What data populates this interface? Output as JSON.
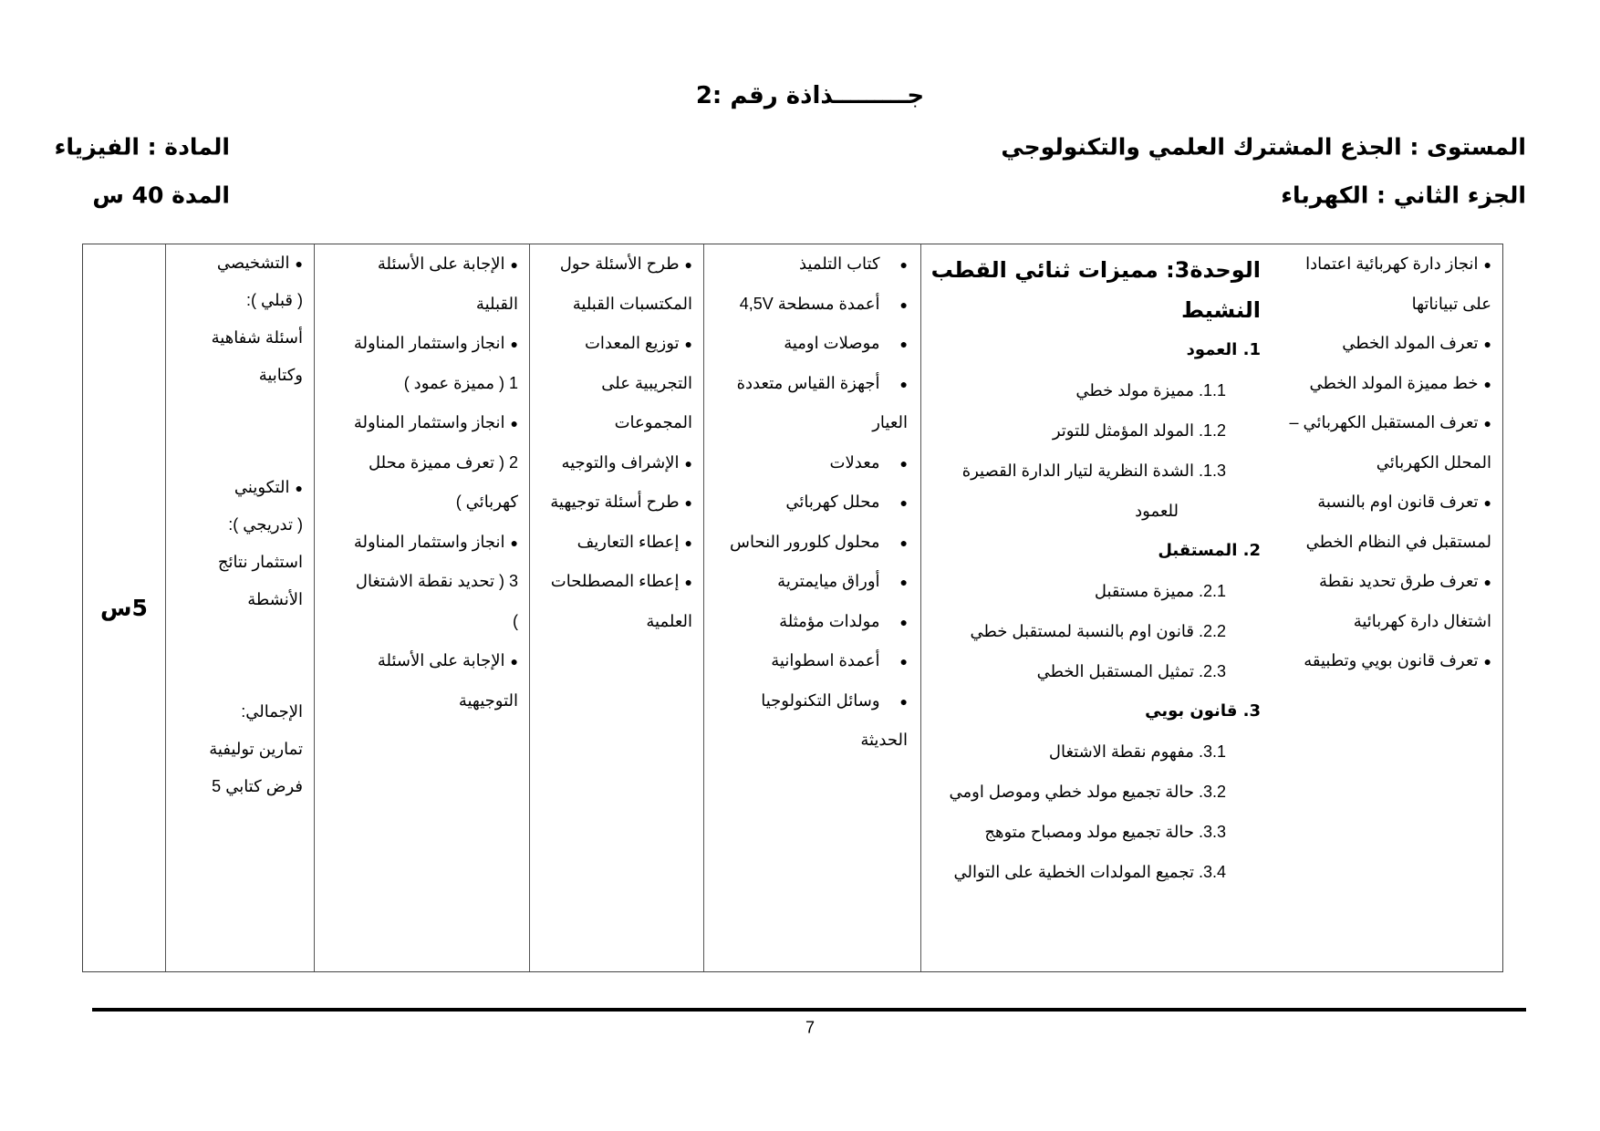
{
  "header": {
    "title": "جـــــــــذاذة رقم :2",
    "level": "المستوى : الجذع المشترك العلمي والتكنولوجي",
    "part": "الجزء الثاني : الكهرباء",
    "subject": "المادة : الفيزياء",
    "duration": "المدة 40 س"
  },
  "table": {
    "objectives": [
      {
        "text": "انجاز دارة كهربائية اعتمادا",
        "bullet": true
      },
      {
        "text": "على تبياناتها",
        "bullet": false
      },
      {
        "text": "تعرف المولد الخطي",
        "bullet": true
      },
      {
        "text": "خط مميزة المولد الخطي",
        "bullet": true
      },
      {
        "text": "تعرف المستقبل الكهربائي –",
        "bullet": true
      },
      {
        "text": "المحلل الكهربائي",
        "bullet": false
      },
      {
        "text": "تعرف قانون اوم بالنسبة",
        "bullet": true
      },
      {
        "text": "لمستقبل في النظام الخطي",
        "bullet": false
      },
      {
        "text": "تعرف طرق تحديد نقطة",
        "bullet": true
      },
      {
        "text": "اشتغال دارة كهربائية",
        "bullet": false
      },
      {
        "text": "تعرف قانون بويي وتطبيقه",
        "bullet": true
      }
    ],
    "unit": {
      "title_line1": "الوحدة3: مميزات ثنائي القطب",
      "title_line2": "النشيط",
      "items": [
        {
          "type": "main",
          "text": "1.  العمود"
        },
        {
          "type": "sub",
          "text": "1.1. مميزة مولد خطي"
        },
        {
          "type": "sub",
          "text": "1.2. المولد المؤمثل للتوتر"
        },
        {
          "type": "sub",
          "text": "1.3. الشدة النظرية لتيار الدارة القصيرة"
        },
        {
          "type": "cont",
          "text": "للعمود"
        },
        {
          "type": "main",
          "text": "2.  المستقبل"
        },
        {
          "type": "sub",
          "text": "2.1. مميزة مستقبل"
        },
        {
          "type": "sub",
          "text": "2.2. قانون اوم بالنسبة لمستقبل خطي"
        },
        {
          "type": "sub",
          "text": "2.3. تمثيل المستقبل الخطي"
        },
        {
          "type": "main",
          "text": "3.  قانون بويي"
        },
        {
          "type": "sub",
          "text": "3.1. مفهوم نقطة الاشتغال"
        },
        {
          "type": "sub",
          "text": "3.2. حالة تجميع مولد خطي وموصل اومي"
        },
        {
          "type": "sub",
          "text": "3.3. حالة تجميع مولد ومصباح متوهج"
        },
        {
          "type": "sub",
          "text": "3.4. تجميع المولدات الخطية على التوالي"
        }
      ]
    },
    "materials": [
      {
        "text": "كتاب التلميذ",
        "bullet": true
      },
      {
        "text": "أعمدة مسطحة 4,5V",
        "bullet": true
      },
      {
        "text": "موصلات اومية",
        "bullet": true
      },
      {
        "text": "أجهزة القياس متعددة",
        "bullet": true
      },
      {
        "text": "العيار",
        "bullet": false
      },
      {
        "text": "معدلات",
        "bullet": true
      },
      {
        "text": "محلل كهربائي",
        "bullet": true
      },
      {
        "text": "محلول كلورور النحاس",
        "bullet": true
      },
      {
        "text": "أوراق ميايمترية",
        "bullet": true
      },
      {
        "text": "مولدات مؤمثلة",
        "bullet": true
      },
      {
        "text": "أعمدة اسطوانية",
        "bullet": true
      },
      {
        "text": "وسائل التكنولوجيا",
        "bullet": true
      },
      {
        "text": "الحديثة",
        "bullet": false
      }
    ],
    "teacher_activities": [
      {
        "text": "طرح الأسئلة حول",
        "bullet": true
      },
      {
        "text": "المكتسبات القبلية",
        "bullet": false
      },
      {
        "text": "توزيع المعدات",
        "bullet": true
      },
      {
        "text": "التجريبية على",
        "bullet": false
      },
      {
        "text": "المجموعات",
        "bullet": false
      },
      {
        "text": "الإشراف والتوجيه",
        "bullet": true
      },
      {
        "text": "طرح أسئلة توجيهية",
        "bullet": true
      },
      {
        "text": "إعطاء التعاريف",
        "bullet": true
      },
      {
        "text": "إعطاء المصطلحات",
        "bullet": true
      },
      {
        "text": "العلمية",
        "bullet": false
      }
    ],
    "student_activities": [
      {
        "text": "الإجابة على الأسئلة",
        "bullet": true
      },
      {
        "text": "القبلية",
        "bullet": false
      },
      {
        "text": "انجاز واستثمار المناولة",
        "bullet": true
      },
      {
        "text": "1 ( مميزة عمود )",
        "bullet": false
      },
      {
        "text": "انجاز واستثمار المناولة",
        "bullet": true
      },
      {
        "text": "2 ( تعرف مميزة محلل",
        "bullet": false
      },
      {
        "text": "كهربائي )",
        "bullet": false
      },
      {
        "text": "انجاز واستثمار المناولة",
        "bullet": true
      },
      {
        "text": "3 ( تحديد نقطة الاشتغال",
        "bullet": false
      },
      {
        "text": ")",
        "bullet": false
      },
      {
        "text": "الإجابة على الأسئلة",
        "bullet": true
      },
      {
        "text": "التوجيهية",
        "bullet": false
      }
    ],
    "evaluation": [
      {
        "text": "التشخيصي",
        "bullet": true
      },
      {
        "text": "( قبلي ):",
        "bullet": false
      },
      {
        "text": "أسئلة شفاهية",
        "bullet": false
      },
      {
        "text": "وكتابية",
        "bullet": false
      },
      {
        "text": "",
        "bullet": false
      },
      {
        "text": "",
        "bullet": false
      },
      {
        "text": "التكويني",
        "bullet": true
      },
      {
        "text": "( تدريجي ):",
        "bullet": false
      },
      {
        "text": "استثمار نتائج",
        "bullet": false
      },
      {
        "text": "الأنشطة",
        "bullet": false
      },
      {
        "text": "",
        "bullet": false
      },
      {
        "text": "",
        "bullet": false
      },
      {
        "text": "الإجمالي:",
        "bullet": false
      },
      {
        "text": "تمارين توليفية",
        "bullet": false
      },
      {
        "text": "فرض كتابي 5",
        "bullet": false
      }
    ],
    "time": "5س"
  },
  "footer": {
    "page_number": "7"
  }
}
